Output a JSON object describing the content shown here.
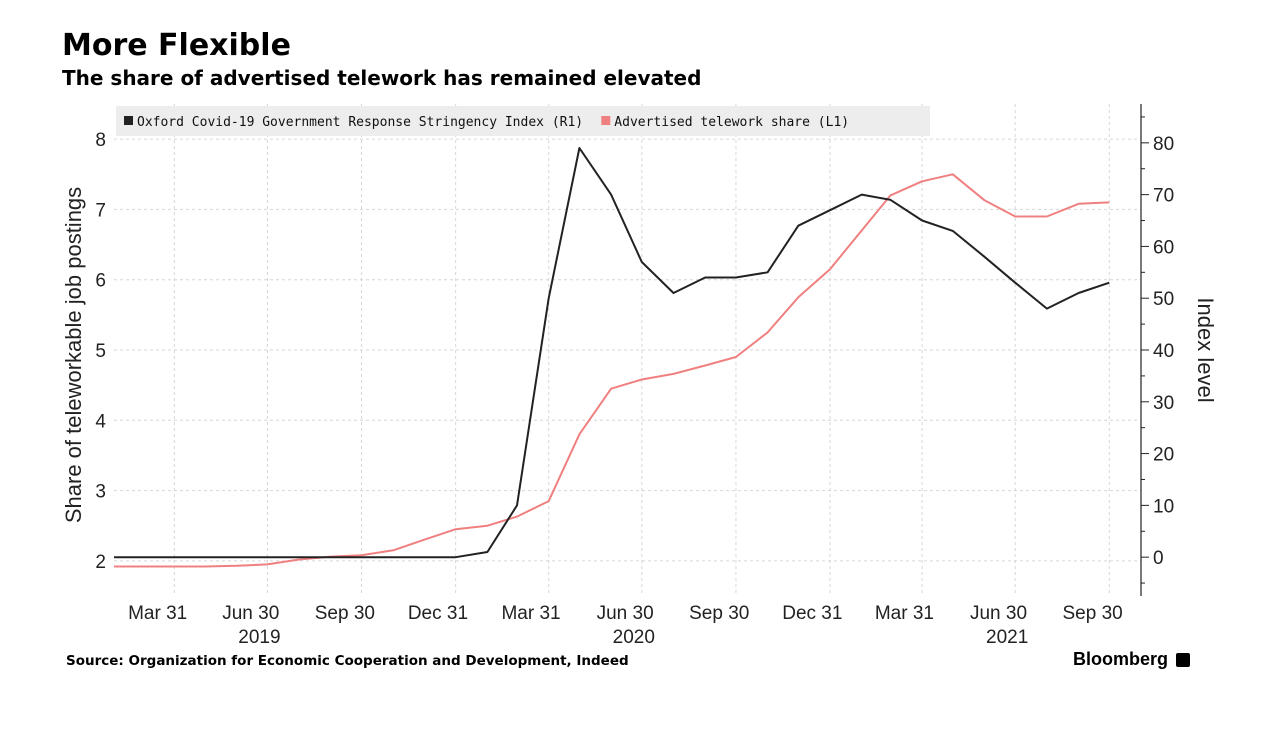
{
  "title": "More Flexible",
  "subtitle": "The share of advertised telework has remained elevated",
  "source": "Source: Organization for Economic Cooperation and Development, Indeed",
  "brand": "Bloomberg",
  "chart_data": {
    "type": "line",
    "title": "More Flexible",
    "subtitle": "The share of advertised telework has remained elevated",
    "ylabel_left": "Share of teleworkable job postings",
    "ylabel_right": "Index level",
    "ylim_left": [
      1.5,
      8.5
    ],
    "ylim_right": [
      -7.5,
      87.5
    ],
    "yticks_left": [
      2,
      3,
      4,
      5,
      6,
      7,
      8
    ],
    "yticks_right": [
      0,
      10,
      20,
      30,
      40,
      50,
      60,
      70,
      80
    ],
    "xlim": [
      "2019-01-31",
      "2021-10-31"
    ],
    "x_tick_labels": [
      "Mar 31",
      "Jun 30",
      "Sep 30",
      "Dec 31",
      "Mar 31",
      "Jun 30",
      "Sep 30",
      "Dec 31",
      "Mar 31",
      "Jun 30",
      "Sep 30"
    ],
    "x_year_labels": [
      "2019",
      "2020",
      "2021"
    ],
    "legend_placement": "top-left",
    "grid": true,
    "colors": {
      "stringency": "#222222",
      "telework": "#f08080"
    },
    "x": [
      "2019-01-31",
      "2019-02-28",
      "2019-03-31",
      "2019-04-30",
      "2019-05-31",
      "2019-06-30",
      "2019-07-31",
      "2019-08-31",
      "2019-09-30",
      "2019-10-31",
      "2019-11-30",
      "2019-12-31",
      "2020-01-31",
      "2020-02-29",
      "2020-03-31",
      "2020-04-30",
      "2020-05-31",
      "2020-06-30",
      "2020-07-31",
      "2020-08-31",
      "2020-09-30",
      "2020-10-31",
      "2020-11-30",
      "2020-12-31",
      "2021-01-31",
      "2021-02-28",
      "2021-03-31",
      "2021-04-30",
      "2021-05-31",
      "2021-06-30",
      "2021-07-31",
      "2021-08-31",
      "2021-09-30"
    ],
    "series": [
      {
        "name": "Oxford Covid-19 Government Response Stringency Index (R1)",
        "axis": "right",
        "values": [
          0,
          0,
          0,
          0,
          0,
          0,
          0,
          0,
          0,
          0,
          0,
          0,
          1,
          10,
          50,
          79,
          70,
          57,
          51,
          54,
          54,
          55,
          64,
          67,
          70,
          69,
          65,
          63,
          58,
          53,
          48,
          51,
          53
        ]
      },
      {
        "name": "Advertised telework share (L1)",
        "axis": "left",
        "values": [
          1.92,
          1.92,
          1.92,
          1.92,
          1.93,
          1.95,
          2.02,
          2.06,
          2.08,
          2.15,
          2.3,
          2.45,
          2.5,
          2.63,
          2.85,
          3.8,
          4.45,
          4.58,
          4.66,
          4.78,
          4.9,
          5.25,
          5.75,
          6.15,
          6.7,
          7.2,
          7.4,
          7.5,
          7.13,
          6.9,
          6.9,
          7.08,
          7.1
        ]
      }
    ]
  }
}
